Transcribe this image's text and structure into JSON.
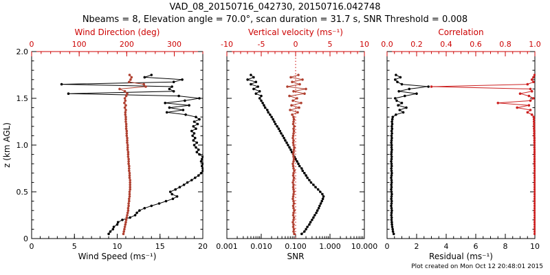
{
  "header": {
    "title": "VAD_08_20150716_042730, 20150716.042748",
    "subtitle": "Nbeams = 8, Elevation angle = 70.0°, scan duration = 31.7 s, SNR Threshold = 0.008"
  },
  "footer": {
    "created": "Plot created on Mon Oct 12 20:48:01 2015"
  },
  "colors": {
    "background": "#ffffff",
    "axis_black": "#000000",
    "axis_red": "#cc0000",
    "series_black": "#000000",
    "series_brick": "#b04030",
    "series_red": "#cc2020"
  },
  "chart_data": {
    "type": "line",
    "title": "VAD_08_20150716_042730, 20150716.042748",
    "ylabel": "z (km AGL)",
    "legend": "none",
    "grid": false,
    "y_axis": {
      "label": "z (km AGL)",
      "min": 0,
      "max": 2,
      "ticks": [
        0,
        0.5,
        1,
        1.5,
        2
      ],
      "tick_labels": [
        "0",
        "0.5",
        "1.0",
        "1.5",
        "2.0"
      ],
      "minor_step": 0.1
    },
    "z_km": [
      0.05,
      0.075,
      0.1,
      0.125,
      0.15,
      0.175,
      0.2,
      0.225,
      0.25,
      0.275,
      0.3,
      0.325,
      0.35,
      0.375,
      0.4,
      0.425,
      0.45,
      0.475,
      0.5,
      0.525,
      0.55,
      0.575,
      0.6,
      0.625,
      0.65,
      0.675,
      0.7,
      0.725,
      0.75,
      0.775,
      0.8,
      0.825,
      0.85,
      0.875,
      0.9,
      0.925,
      0.95,
      0.975,
      1.0,
      1.025,
      1.05,
      1.075,
      1.1,
      1.125,
      1.15,
      1.175,
      1.2,
      1.225,
      1.25,
      1.275,
      1.3,
      1.325,
      1.35,
      1.375,
      1.4,
      1.425,
      1.45,
      1.475,
      1.5,
      1.525,
      1.55,
      1.575,
      1.6,
      1.625,
      1.65,
      1.675,
      1.7,
      1.725,
      1.75
    ],
    "panels": [
      {
        "x_bottom": {
          "label": "Wind Speed (ms⁻¹)",
          "min": 0,
          "max": 20,
          "log": false,
          "ticks": [
            0,
            5,
            10,
            15,
            20
          ],
          "tick_labels": [
            "0",
            "5",
            "10",
            "15",
            "20"
          ],
          "minor_step": 1,
          "color": "#000000"
        },
        "x_top": {
          "label": "Wind Direction (deg)",
          "min": 0,
          "max": 360,
          "ticks": [
            0,
            100,
            200,
            300
          ],
          "tick_labels": [
            "0",
            "100",
            "200",
            "300"
          ],
          "minor_step": 20,
          "color": "#cc0000"
        },
        "series": [
          {
            "name": "wind_speed",
            "axis": "bottom",
            "color": "#000000",
            "values": [
              9.0,
              9.2,
              9.5,
              9.6,
              10.0,
              10.1,
              10.6,
              11.5,
              12.1,
              12.3,
              12.6,
              13.2,
              14.0,
              14.9,
              15.7,
              16.5,
              17.0,
              16.4,
              16.2,
              16.8,
              17.3,
              17.8,
              18.2,
              18.7,
              19.1,
              19.5,
              19.8,
              20.0,
              20.0,
              19.9,
              20.0,
              19.8,
              19.9,
              20.0,
              19.6,
              19.3,
              19.5,
              19.2,
              19.0,
              19.3,
              18.9,
              19.1,
              18.8,
              19.0,
              18.7,
              19.2,
              18.9,
              19.4,
              19.0,
              19.6,
              19.2,
              18.0,
              15.8,
              17.7,
              16.1,
              18.4,
              15.6,
              17.9,
              19.6,
              17.2,
              4.3,
              16.6,
              16.1,
              16.4,
              3.5,
              16.6,
              17.6,
              13.2,
              14.0
            ]
          },
          {
            "name": "wind_direction",
            "axis": "top",
            "color": "#b04030",
            "values": [
              193,
              194,
              195,
              196,
              197,
              198,
              199,
              200,
              201,
              202,
              203,
              203,
              204,
              204,
              205,
              205,
              206,
              206,
              206,
              207,
              207,
              207,
              207,
              207,
              206,
              206,
              206,
              205,
              205,
              205,
              204,
              204,
              204,
              203,
              203,
              203,
              202,
              202,
              202,
              201,
              201,
              201,
              200,
              200,
              200,
              199,
              199,
              199,
              198,
              198,
              198,
              197,
              197,
              198,
              196,
              198,
              195,
              197,
              196,
              199,
              201,
              196,
              185,
              240,
              236,
              205,
              208,
              210,
              206
            ]
          }
        ]
      },
      {
        "x_bottom": {
          "label": "SNR",
          "min": 0.001,
          "max": 10,
          "log": true,
          "ticks": [
            0.001,
            0.01,
            0.1,
            1,
            10
          ],
          "tick_labels": [
            "0.001",
            "0.010",
            "0.100",
            "1.000",
            "10.000"
          ],
          "color": "#000000"
        },
        "x_top": {
          "label": "Vertical velocity (ms⁻¹)",
          "min": -10,
          "max": 10,
          "ticks": [
            -10,
            -5,
            0,
            5,
            10
          ],
          "tick_labels": [
            "-10",
            "-5",
            "0",
            "5",
            "10"
          ],
          "minor_step": 1,
          "color": "#cc0000"
        },
        "zero_line": {
          "axis": "top",
          "value": 0,
          "color": "#cc0000",
          "style": "dotted"
        },
        "series": [
          {
            "name": "snr",
            "axis": "bottom",
            "color": "#000000",
            "values": [
              0.15,
              0.18,
              0.2,
              0.22,
              0.25,
              0.27,
              0.3,
              0.33,
              0.36,
              0.4,
              0.43,
              0.47,
              0.5,
              0.54,
              0.58,
              0.62,
              0.65,
              0.6,
              0.52,
              0.45,
              0.38,
              0.33,
              0.28,
              0.25,
              0.22,
              0.2,
              0.18,
              0.16,
              0.15,
              0.13,
              0.12,
              0.11,
              0.1,
              0.092,
              0.085,
              0.078,
              0.072,
              0.066,
              0.06,
              0.055,
              0.05,
              0.046,
              0.042,
              0.038,
              0.035,
              0.032,
              0.029,
              0.026,
              0.024,
              0.022,
              0.02,
              0.018,
              0.016,
              0.015,
              0.013,
              0.012,
              0.011,
              0.01,
              0.009,
              0.01,
              0.007,
              0.009,
              0.006,
              0.008,
              0.005,
              0.007,
              0.004,
              0.006,
              0.005
            ]
          },
          {
            "name": "vertical_velocity",
            "axis": "top",
            "color": "#b04030",
            "values": [
              -0.2,
              -0.3,
              -0.25,
              -0.35,
              -0.3,
              -0.4,
              -0.3,
              -0.25,
              -0.35,
              -0.3,
              -0.2,
              -0.3,
              -0.35,
              -0.25,
              -0.3,
              -0.4,
              -0.35,
              -0.3,
              -0.25,
              -0.3,
              -0.35,
              -0.3,
              -0.4,
              -0.3,
              -0.25,
              -0.35,
              -0.3,
              -0.2,
              -0.3,
              -0.35,
              -0.4,
              -0.3,
              -0.25,
              -0.3,
              -0.35,
              -0.3,
              -0.25,
              -0.2,
              -0.3,
              -0.35,
              -0.3,
              -0.4,
              -0.35,
              -0.3,
              -0.25,
              -0.3,
              -0.2,
              -0.35,
              -0.3,
              -0.25,
              -0.3,
              -0.5,
              0.3,
              -0.8,
              0.5,
              -0.6,
              0.8,
              -0.4,
              0.2,
              -0.9,
              1.3,
              -0.3,
              1.5,
              -1.2,
              0.6,
              -0.5,
              1.0,
              -0.7,
              0.4
            ]
          }
        ]
      },
      {
        "x_bottom": {
          "label": "Residual (ms⁻¹)",
          "min": 0,
          "max": 10,
          "log": false,
          "ticks": [
            0,
            2,
            4,
            6,
            8,
            10
          ],
          "tick_labels": [
            "0",
            "2",
            "4",
            "6",
            "8",
            "10"
          ],
          "minor_step": 0.5,
          "color": "#000000"
        },
        "x_top": {
          "label": "Correlation",
          "min": 0,
          "max": 1,
          "ticks": [
            0,
            0.2,
            0.4,
            0.6,
            0.8,
            1
          ],
          "tick_labels": [
            "0.0",
            "0.2",
            "0.4",
            "0.6",
            "0.8",
            "1.0"
          ],
          "minor_step": 0.05,
          "color": "#cc0000"
        },
        "series": [
          {
            "name": "residual",
            "axis": "bottom",
            "color": "#000000",
            "values": [
              0.45,
              0.4,
              0.38,
              0.35,
              0.33,
              0.32,
              0.3,
              0.31,
              0.29,
              0.3,
              0.32,
              0.3,
              0.28,
              0.3,
              0.31,
              0.29,
              0.3,
              0.32,
              0.3,
              0.28,
              0.3,
              0.29,
              0.31,
              0.3,
              0.28,
              0.3,
              0.32,
              0.3,
              0.29,
              0.31,
              0.3,
              0.28,
              0.3,
              0.31,
              0.29,
              0.3,
              0.32,
              0.3,
              0.31,
              0.29,
              0.3,
              0.32,
              0.3,
              0.33,
              0.31,
              0.34,
              0.32,
              0.35,
              0.33,
              0.36,
              0.38,
              0.6,
              1.1,
              0.85,
              1.3,
              0.75,
              1.0,
              0.65,
              0.55,
              1.2,
              2.0,
              0.8,
              1.5,
              2.8,
              1.0,
              0.7,
              0.55,
              0.9,
              0.6
            ]
          },
          {
            "name": "correlation",
            "axis": "top",
            "color": "#cc2020",
            "values": [
              0.999,
              0.999,
              0.999,
              0.999,
              0.999,
              0.999,
              0.999,
              0.999,
              0.999,
              0.999,
              0.999,
              0.999,
              0.999,
              0.999,
              0.999,
              0.999,
              0.999,
              0.999,
              0.999,
              0.999,
              0.999,
              0.999,
              0.999,
              0.999,
              0.999,
              0.999,
              0.999,
              0.999,
              0.999,
              0.999,
              0.998,
              0.998,
              0.998,
              0.998,
              0.998,
              0.998,
              0.998,
              0.997,
              0.997,
              0.997,
              0.997,
              0.997,
              0.996,
              0.996,
              0.996,
              0.995,
              0.995,
              0.995,
              0.994,
              0.994,
              0.993,
              0.98,
              0.95,
              0.97,
              0.88,
              0.96,
              0.75,
              0.97,
              0.99,
              0.96,
              0.9,
              0.98,
              0.97,
              0.3,
              0.95,
              0.99,
              0.98,
              0.99,
              0.998
            ]
          }
        ]
      }
    ]
  }
}
